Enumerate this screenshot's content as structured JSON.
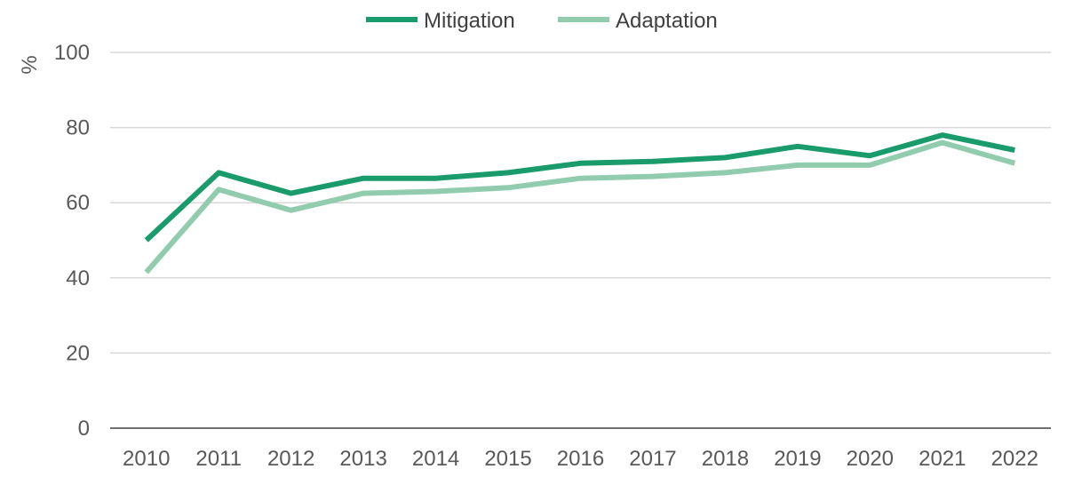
{
  "chart_data": {
    "type": "line",
    "title": "",
    "xlabel": "",
    "ylabel": "%",
    "ylim": [
      0,
      100
    ],
    "yticks": [
      0,
      20,
      40,
      60,
      80,
      100
    ],
    "grid": true,
    "legend": "top-center",
    "categories": [
      "2010",
      "2011",
      "2012",
      "2013",
      "2014",
      "2015",
      "2016",
      "2017",
      "2018",
      "2019",
      "2020",
      "2021",
      "2022"
    ],
    "series": [
      {
        "name": "Mitigation",
        "color": "#1a9b6c",
        "values": [
          50,
          68,
          62.5,
          66.5,
          66.5,
          68,
          70.5,
          71,
          72,
          75,
          72.5,
          78,
          74
        ]
      },
      {
        "name": "Adaptation",
        "color": "#92ccae",
        "values": [
          41.5,
          63.5,
          58,
          62.5,
          63,
          64,
          66.5,
          67,
          68,
          70,
          70,
          76,
          70.5
        ]
      }
    ]
  }
}
